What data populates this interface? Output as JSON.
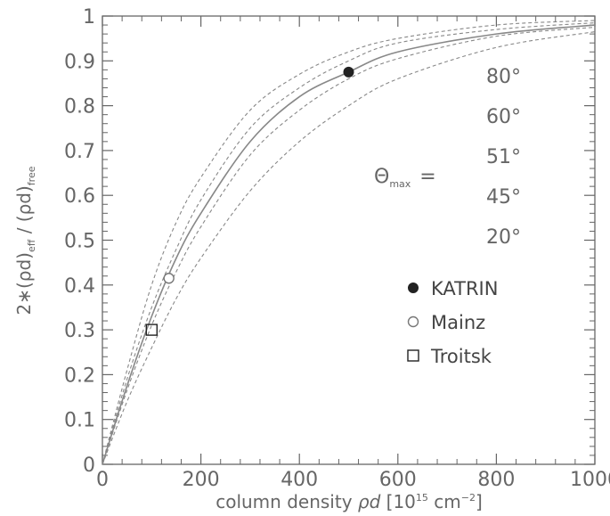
{
  "chart_data": {
    "type": "line",
    "xlabel": {
      "main": "column density ",
      "rho_d": "ρd",
      "bracket_open": " [10",
      "exp1": "15",
      "unit": " cm",
      "exp2": "−2",
      "bracket_close": "]"
    },
    "ylabel": {
      "prefix": "2∗(ρd)",
      "sub1": "eff",
      "middle": " / (ρd)",
      "sub2": "free"
    },
    "xlim": [
      0,
      1000
    ],
    "ylim": [
      0,
      1
    ],
    "x_ticks": [
      "0",
      "200",
      "400",
      "600",
      "800",
      "1000"
    ],
    "y_ticks": [
      "0",
      "0.1",
      "0.2",
      "0.3",
      "0.4",
      "0.5",
      "0.6",
      "0.7",
      "0.8",
      "0.9",
      "1"
    ],
    "theta": {
      "symbol": "Θ",
      "sub": "max",
      "equals": "=",
      "values": [
        "80°",
        "60°",
        "51°",
        "45°",
        "20°"
      ]
    },
    "curves": [
      {
        "theta_deg": 80,
        "style": "dashed",
        "x": [
          0,
          50,
          100,
          150,
          200,
          300,
          400,
          500,
          600,
          800,
          1000
        ],
        "y": [
          0,
          0.21,
          0.4,
          0.54,
          0.64,
          0.79,
          0.87,
          0.92,
          0.95,
          0.98,
          0.99
        ]
      },
      {
        "theta_deg": 60,
        "style": "dashed",
        "x": [
          0,
          50,
          100,
          150,
          200,
          300,
          400,
          500,
          600,
          800,
          1000
        ],
        "y": [
          0,
          0.19,
          0.35,
          0.48,
          0.59,
          0.75,
          0.84,
          0.9,
          0.94,
          0.97,
          0.985
        ]
      },
      {
        "theta_deg": 51,
        "style": "solid",
        "x": [
          0,
          50,
          100,
          150,
          200,
          300,
          400,
          500,
          600,
          800,
          1000
        ],
        "y": [
          0,
          0.175,
          0.33,
          0.46,
          0.56,
          0.72,
          0.82,
          0.875,
          0.92,
          0.96,
          0.98
        ]
      },
      {
        "theta_deg": 45,
        "style": "dashed",
        "x": [
          0,
          50,
          100,
          150,
          200,
          300,
          400,
          500,
          600,
          800,
          1000
        ],
        "y": [
          0,
          0.165,
          0.31,
          0.43,
          0.53,
          0.69,
          0.79,
          0.86,
          0.905,
          0.955,
          0.975
        ]
      },
      {
        "theta_deg": 20,
        "style": "dashed",
        "x": [
          0,
          50,
          100,
          150,
          200,
          300,
          400,
          500,
          600,
          800,
          1000
        ],
        "y": [
          0,
          0.14,
          0.26,
          0.37,
          0.46,
          0.61,
          0.72,
          0.8,
          0.86,
          0.93,
          0.965
        ]
      }
    ],
    "points": [
      {
        "name": "KATRIN",
        "marker": "filled-circle",
        "x": 500,
        "y": 0.875
      },
      {
        "name": "Mainz",
        "marker": "open-circle",
        "x": 135,
        "y": 0.415
      },
      {
        "name": "Troitsk",
        "marker": "open-square",
        "x": 100,
        "y": 0.3
      }
    ],
    "legend": [
      "KATRIN",
      "Mainz",
      "Troitsk"
    ],
    "colors": {
      "axis": "#666666",
      "curve": "#888888",
      "marker": "#222222"
    }
  }
}
